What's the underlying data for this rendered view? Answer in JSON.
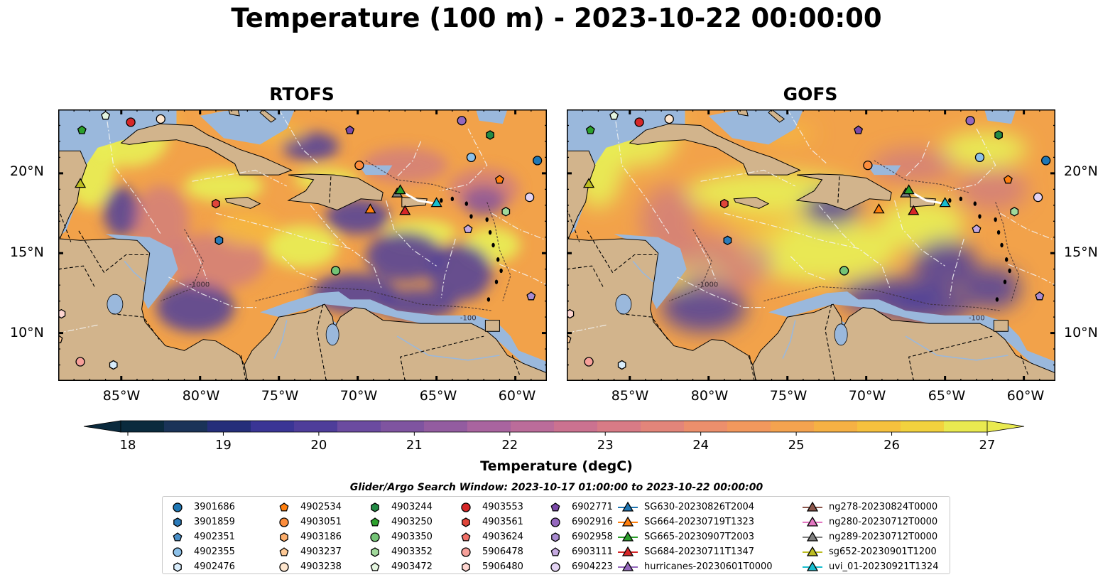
{
  "title": "Temperature (100 m) - 2023-10-22 00:00:00",
  "panels": [
    {
      "title": "RTOFS",
      "lat_side": "left"
    },
    {
      "title": "GOFS",
      "lat_side": "right"
    }
  ],
  "latitude_labels": [
    "20°N",
    "15°N",
    "10°N"
  ],
  "longitude_labels": [
    "85°W",
    "80°W",
    "75°W",
    "70°W",
    "65°W",
    "60°W"
  ],
  "bathymetry_labels": [
    "-1000",
    "-100"
  ],
  "colorbar": {
    "label": "Temperature (degC)",
    "ticks": [
      "18",
      "19",
      "20",
      "21",
      "22",
      "23",
      "24",
      "25",
      "26",
      "27"
    ],
    "min": 18,
    "max": 27,
    "colors": [
      "#0a2a3d",
      "#1a3358",
      "#252e7a",
      "#3a3595",
      "#4e3d9a",
      "#6b4ba0",
      "#7f54a0",
      "#935ca0",
      "#a9649f",
      "#bb6c9a",
      "#cb7290",
      "#d87b86",
      "#e3857a",
      "#ec8f6c",
      "#f2985d",
      "#f4a34f",
      "#f6b144",
      "#f6c13e",
      "#f2d23e",
      "#e9ea50"
    ]
  },
  "search_window": "Glider/Argo Search Window: 2023-10-17 01:00:00 to 2023-10-22 00:00:00",
  "legend": {
    "columns": [
      [
        {
          "label": "3901686",
          "marker": "circle",
          "color": "#1f77b4"
        },
        {
          "label": "3901859",
          "marker": "hexagon",
          "color": "#2b7bba"
        },
        {
          "label": "4902351",
          "marker": "pentagon",
          "color": "#4a90c8"
        },
        {
          "label": "4902355",
          "marker": "circle",
          "color": "#8cc0e8"
        },
        {
          "label": "4902476",
          "marker": "hexagon",
          "color": "#d8ecfb"
        }
      ],
      [
        {
          "label": "4902534",
          "marker": "pentagon",
          "color": "#ff7f0e"
        },
        {
          "label": "4903051",
          "marker": "circle",
          "color": "#fd8d3c"
        },
        {
          "label": "4903186",
          "marker": "hexagon",
          "color": "#fdae6b"
        },
        {
          "label": "4903237",
          "marker": "pentagon",
          "color": "#fdc894"
        },
        {
          "label": "4903238",
          "marker": "circle",
          "color": "#fee6ce"
        }
      ],
      [
        {
          "label": "4903244",
          "marker": "hexagon",
          "color": "#238b45"
        },
        {
          "label": "4903250",
          "marker": "pentagon",
          "color": "#2ca02c"
        },
        {
          "label": "4903350",
          "marker": "circle",
          "color": "#74c476"
        },
        {
          "label": "4903352",
          "marker": "hexagon",
          "color": "#a1d99b"
        },
        {
          "label": "4903472",
          "marker": "pentagon",
          "color": "#e5f5e0"
        }
      ],
      [
        {
          "label": "4903553",
          "marker": "circle",
          "color": "#d62728"
        },
        {
          "label": "4903561",
          "marker": "hexagon",
          "color": "#e0453a"
        },
        {
          "label": "4903624",
          "marker": "pentagon",
          "color": "#f07068"
        },
        {
          "label": "5906478",
          "marker": "circle",
          "color": "#f7a09a"
        },
        {
          "label": "5906480",
          "marker": "hexagon",
          "color": "#fdd5d0"
        }
      ],
      [
        {
          "label": "6902771",
          "marker": "pentagon",
          "color": "#7b4aa8"
        },
        {
          "label": "6902916",
          "marker": "circle",
          "color": "#9467bd"
        },
        {
          "label": "6902958",
          "marker": "hexagon",
          "color": "#a98bd0"
        },
        {
          "label": "6903111",
          "marker": "pentagon",
          "color": "#c5a9e0"
        },
        {
          "label": "6904223",
          "marker": "circle",
          "color": "#e3d3f3"
        }
      ],
      [
        {
          "label": "SG630-20230826T2004",
          "marker": "triangle-line",
          "color": "#1f77b4"
        },
        {
          "label": "SG664-20230719T1323",
          "marker": "triangle-line",
          "color": "#ff7f0e"
        },
        {
          "label": "SG665-20230907T2003",
          "marker": "triangle-line",
          "color": "#2ca02c"
        },
        {
          "label": "SG684-20230711T1347",
          "marker": "triangle-line",
          "color": "#d62728"
        },
        {
          "label": "hurricanes-20230601T0000",
          "marker": "triangle-line",
          "color": "#9467bd"
        }
      ],
      [
        {
          "label": "ng278-20230824T0000",
          "marker": "triangle-line",
          "color": "#8c564b"
        },
        {
          "label": "ng280-20230712T0000",
          "marker": "triangle-line",
          "color": "#e377c2"
        },
        {
          "label": "ng289-20230712T0000",
          "marker": "triangle-line",
          "color": "#7f7f7f"
        },
        {
          "label": "sg652-20230901T1200",
          "marker": "triangle-line",
          "color": "#bcbd22"
        },
        {
          "label": "uvi_01-20230921T1324",
          "marker": "triangle-line",
          "color": "#17becf"
        }
      ]
    ]
  },
  "map_colors": {
    "land": "#d2b48c",
    "shelf": "#9ab8dc",
    "deep_cold": "#0a2a3d"
  },
  "markers": [
    {
      "lon": -84.4,
      "lat": 23.2,
      "shape": "circle",
      "color": "#d62728"
    },
    {
      "lon": -82.5,
      "lat": 23.4,
      "shape": "circle",
      "color": "#fee6ce"
    },
    {
      "lon": -86.0,
      "lat": 23.6,
      "shape": "pentagon",
      "color": "#e5f5e0"
    },
    {
      "lon": -87.5,
      "lat": 22.7,
      "shape": "pentagon",
      "color": "#2ca02c"
    },
    {
      "lon": -87.6,
      "lat": 19.3,
      "shape": "triangle",
      "color": "#bcbd22"
    },
    {
      "lon": -79.0,
      "lat": 18.1,
      "shape": "hexagon",
      "color": "#e0453a"
    },
    {
      "lon": -78.8,
      "lat": 15.8,
      "shape": "hexagon",
      "color": "#2b7bba"
    },
    {
      "lon": -70.5,
      "lat": 22.7,
      "shape": "pentagon",
      "color": "#7b4aa8"
    },
    {
      "lon": -69.9,
      "lat": 20.5,
      "shape": "circle",
      "color": "#fd8d3c"
    },
    {
      "lon": -63.4,
      "lat": 23.3,
      "shape": "circle",
      "color": "#9467bd"
    },
    {
      "lon": -61.6,
      "lat": 22.4,
      "shape": "hexagon",
      "color": "#238b45"
    },
    {
      "lon": -62.8,
      "lat": 21.0,
      "shape": "circle",
      "color": "#8cc0e8"
    },
    {
      "lon": -61.0,
      "lat": 19.6,
      "shape": "pentagon",
      "color": "#ff7f0e"
    },
    {
      "lon": -58.6,
      "lat": 20.8,
      "shape": "circle",
      "color": "#1f77b4"
    },
    {
      "lon": -59.1,
      "lat": 18.5,
      "shape": "circle",
      "color": "#e3d3f3"
    },
    {
      "lon": -60.6,
      "lat": 17.6,
      "shape": "hexagon",
      "color": "#a1d99b"
    },
    {
      "lon": -63.0,
      "lat": 16.5,
      "shape": "pentagon",
      "color": "#c5a9e0"
    },
    {
      "lon": -59.0,
      "lat": 12.3,
      "shape": "pentagon",
      "color": "#a98bd0"
    },
    {
      "lon": -69.2,
      "lat": 17.7,
      "shape": "triangle",
      "color": "#ff7f0e"
    },
    {
      "lon": -67.5,
      "lat": 18.7,
      "shape": "triangle",
      "color": "#7f7f7f"
    },
    {
      "lon": -67.3,
      "lat": 18.9,
      "shape": "triangle",
      "color": "#2ca02c"
    },
    {
      "lon": -67.0,
      "lat": 17.6,
      "shape": "triangle",
      "color": "#d62728"
    },
    {
      "lon": -65.0,
      "lat": 18.1,
      "shape": "triangle",
      "color": "#17becf"
    },
    {
      "lon": -71.4,
      "lat": 13.9,
      "shape": "circle",
      "color": "#74c476"
    },
    {
      "lon": -88.8,
      "lat": 11.2,
      "shape": "hexagon",
      "color": "#fdd5d0"
    },
    {
      "lon": -89.0,
      "lat": 9.6,
      "shape": "pentagon",
      "color": "#fdc894"
    },
    {
      "lon": -87.6,
      "lat": 8.2,
      "shape": "circle",
      "color": "#f7a09a"
    },
    {
      "lon": -85.5,
      "lat": 8.0,
      "shape": "hexagon",
      "color": "#d8ecfb"
    }
  ]
}
